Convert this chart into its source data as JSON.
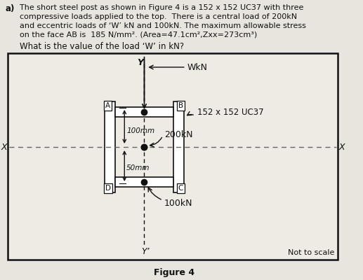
{
  "bg_color": "#e8e5de",
  "box_bg": "#eeebe4",
  "paragraph_line1": "The short steel post as shown in Figure 4 is a 152 x 152 UC37 with three",
  "paragraph_line2": "compressive loads applied to the top.  There is a central load of 200kN",
  "paragraph_line3": "and eccentric loads of ‘W’ kN and 100kN. The maximum allowable stress",
  "paragraph_line4": "on the face AB is  185 N/mm². (Area=47.1cm²,Zxx=273cm³)",
  "question": "What is the value of the load ‘W’ in kN?",
  "figure_caption": "Figure 4",
  "not_to_scale": "Not to scale",
  "uc_label": "152 x 152 UC37",
  "label_A": "A",
  "label_B": "B",
  "label_C": "C",
  "label_D": "D",
  "label_W": "WkN",
  "label_200": "200kN",
  "label_100": "100kN",
  "label_100mm": "100mm",
  "label_50mm": "50mm",
  "label_X_left": "X",
  "label_X_right": "X",
  "label_Y_top": "Y",
  "label_Y_bot": "Y’",
  "text_color": "#111111",
  "line_color": "#111111",
  "dashed_color": "#666666"
}
